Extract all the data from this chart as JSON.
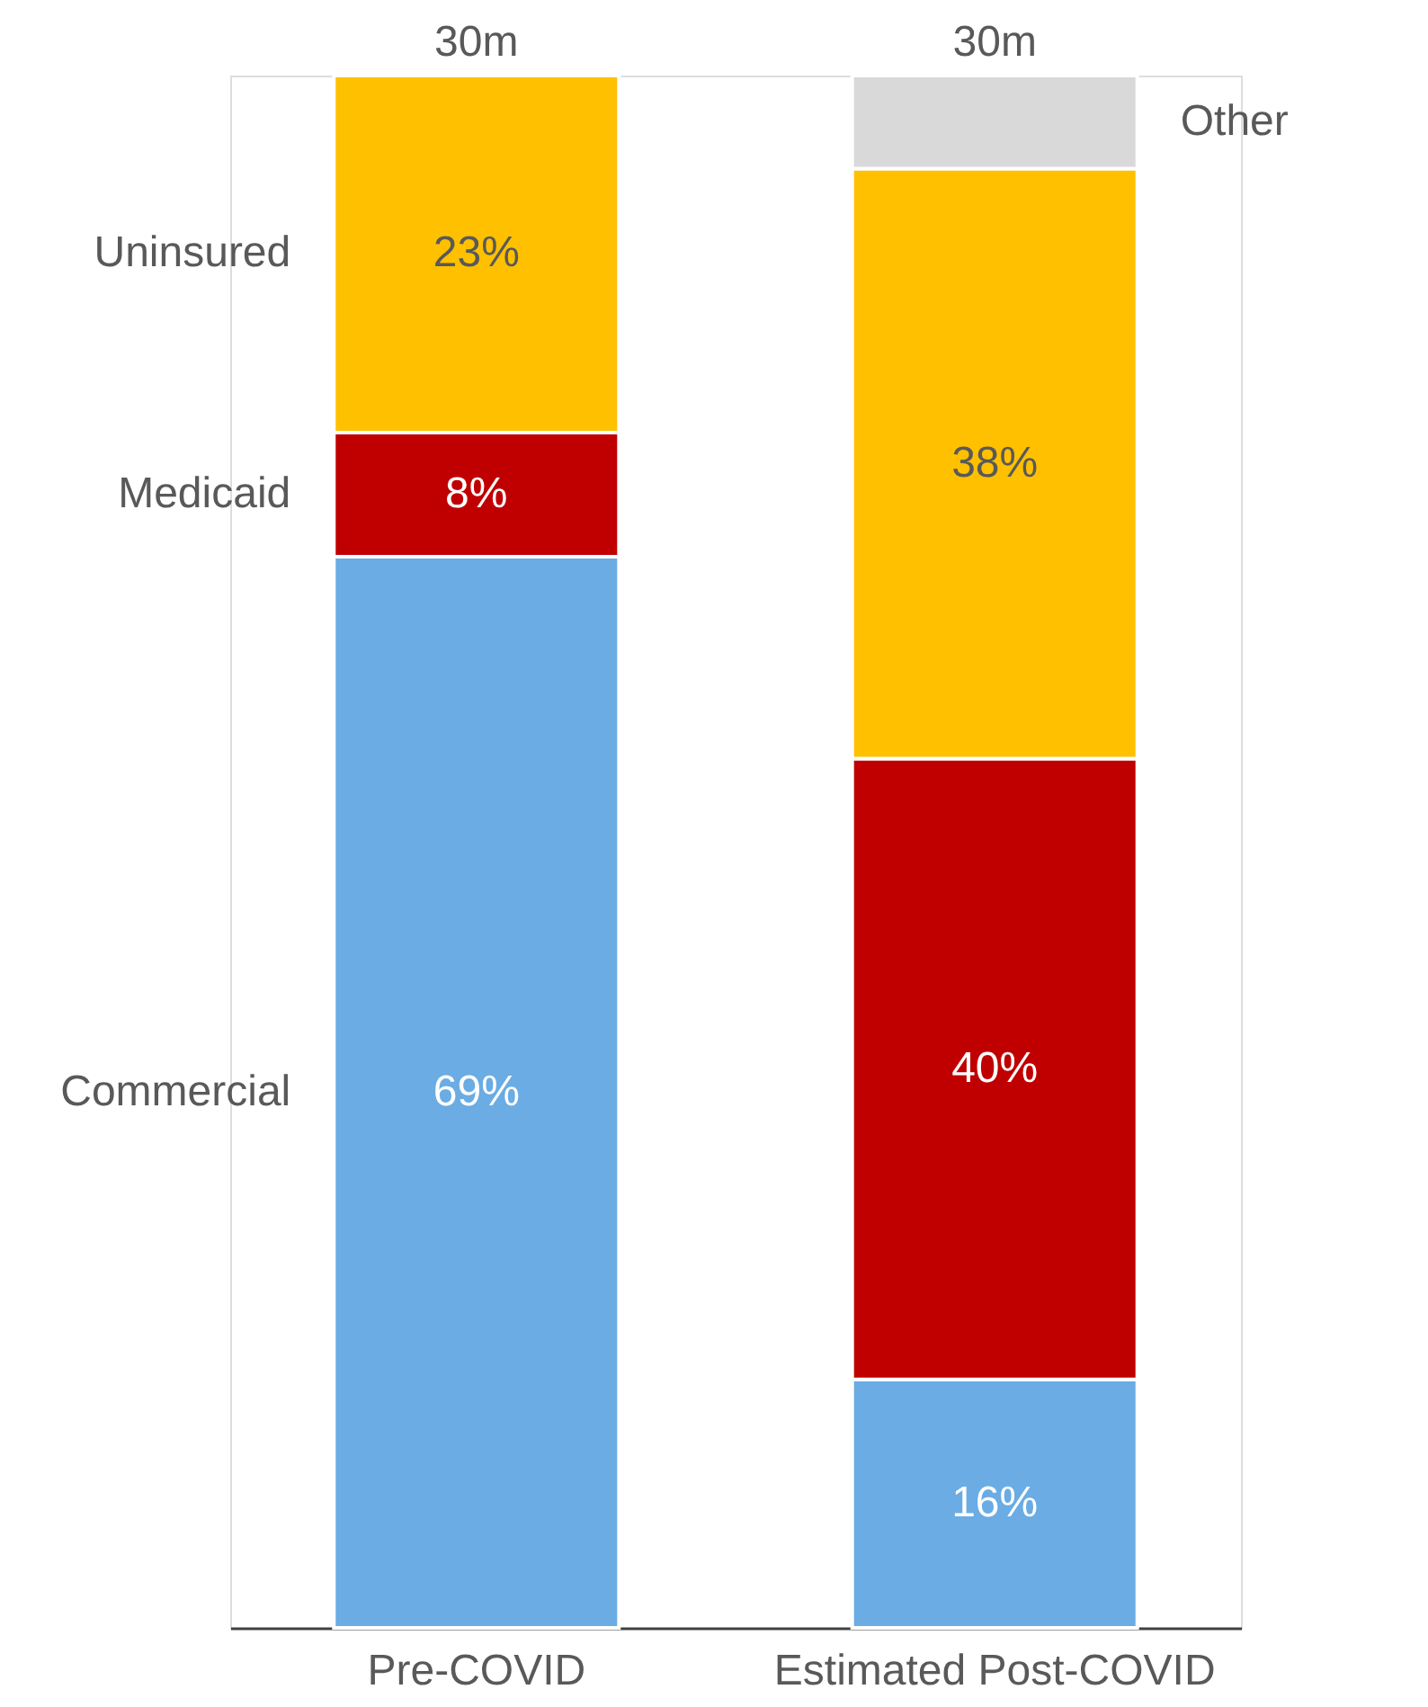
{
  "chart_data": {
    "type": "bar",
    "stacked": true,
    "categories": [
      "Pre-COVID",
      "Estimated Post-COVID"
    ],
    "series": [
      {
        "name": "Commercial",
        "color": "#6aace3",
        "values": [
          69,
          16
        ],
        "value_labels": [
          "69%",
          "16%"
        ]
      },
      {
        "name": "Medicaid",
        "color": "#c00000",
        "values": [
          8,
          40
        ],
        "value_labels": [
          "8%",
          "40%"
        ]
      },
      {
        "name": "Uninsured",
        "color": "#ffc000",
        "values": [
          23,
          38
        ],
        "value_labels": [
          "23%",
          "38%"
        ]
      },
      {
        "name": "Other",
        "color": "#d9d9d9",
        "values": [
          null,
          6
        ],
        "value_labels": [
          null,
          null
        ]
      }
    ],
    "annotations": [
      {
        "text": "30m",
        "x": "Pre-COVID",
        "y": 100
      },
      {
        "text": "30m",
        "x": "Estimated Post-COVID",
        "y": 100
      }
    ],
    "ylim": [
      0,
      100
    ],
    "tick_labels": "x"
  }
}
